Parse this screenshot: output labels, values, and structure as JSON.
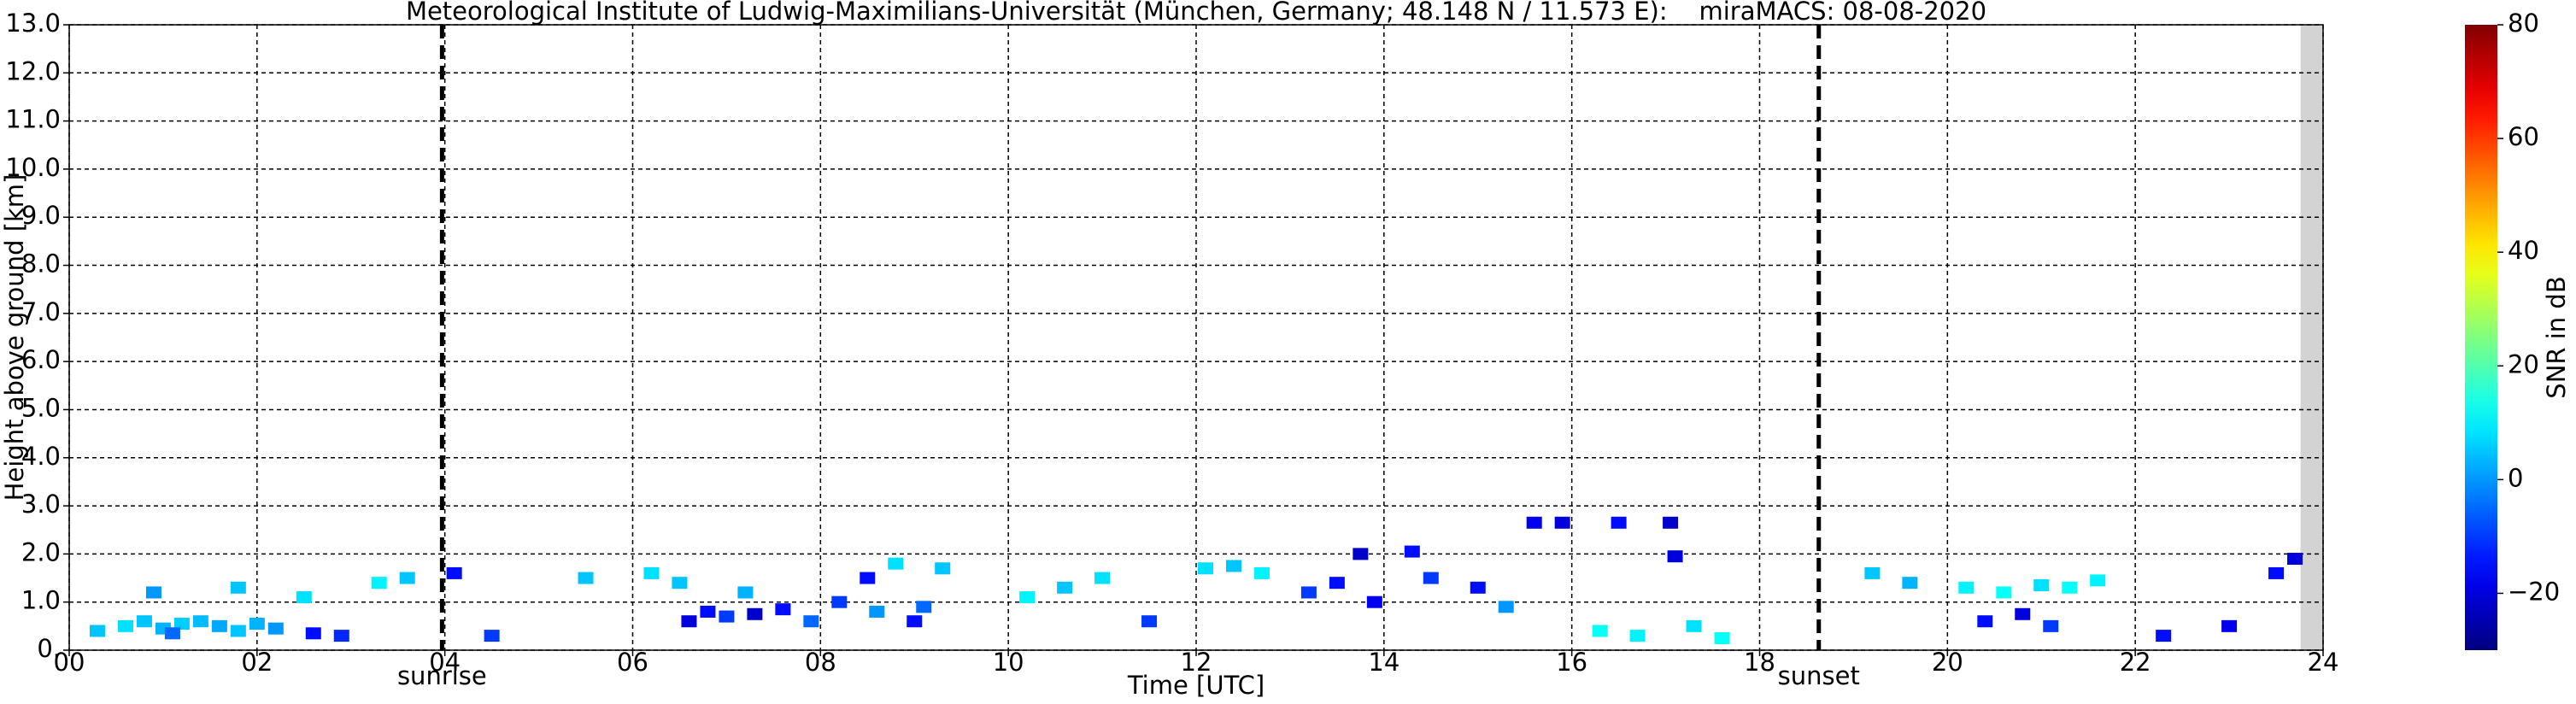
{
  "chart_data": {
    "type": "scatter",
    "title": "Meteorological Institute of Ludwig-Maximilians-Universität (München, Germany; 48.148 N / 11.573 E):    miraMACS: 08-08-2020",
    "x_label": "Time [UTC]",
    "y_label": "Height above ground [km]",
    "colorbar_label": "SNR in dB",
    "colormap": "jet",
    "grid": true,
    "xlim": [
      0,
      24
    ],
    "ylim": [
      0,
      13
    ],
    "clim": [
      -30,
      80
    ],
    "no_data_from": 23.76,
    "xticks": [
      {
        "value": 0,
        "label": "00"
      },
      {
        "value": 2,
        "label": "02"
      },
      {
        "value": 4,
        "label": "04"
      },
      {
        "value": 6,
        "label": "06"
      },
      {
        "value": 8,
        "label": "08"
      },
      {
        "value": 10,
        "label": "10"
      },
      {
        "value": 12,
        "label": "12"
      },
      {
        "value": 14,
        "label": "14"
      },
      {
        "value": 16,
        "label": "16"
      },
      {
        "value": 18,
        "label": "18"
      },
      {
        "value": 20,
        "label": "20"
      },
      {
        "value": 22,
        "label": "22"
      },
      {
        "value": 24,
        "label": "24"
      }
    ],
    "yticks": [
      {
        "value": 0,
        "label": "0."
      },
      {
        "value": 1,
        "label": "1.0"
      },
      {
        "value": 2,
        "label": "2.0"
      },
      {
        "value": 3,
        "label": "3.0"
      },
      {
        "value": 4,
        "label": "4.0"
      },
      {
        "value": 5,
        "label": "5.0"
      },
      {
        "value": 6,
        "label": "6.0"
      },
      {
        "value": 7,
        "label": "7.0"
      },
      {
        "value": 8,
        "label": "8.0"
      },
      {
        "value": 9,
        "label": "9.0"
      },
      {
        "value": 10,
        "label": "10.0"
      },
      {
        "value": 11,
        "label": "11.0"
      },
      {
        "value": 12,
        "label": "12.0"
      },
      {
        "value": 13,
        "label": "13.0"
      }
    ],
    "cticks": [
      {
        "value": -20,
        "label": "−20"
      },
      0,
      20,
      40,
      60,
      80
    ],
    "annotations": [
      {
        "x": 3.97,
        "label": "sunrise"
      },
      {
        "x": 18.63,
        "label": "sunset"
      }
    ],
    "x": [
      0.3,
      0.6,
      0.8,
      1.0,
      1.2,
      1.4,
      1.6,
      1.8,
      2.0,
      2.2,
      1.1,
      2.6,
      2.9,
      0.9,
      1.8,
      2.5,
      3.3,
      3.6,
      4.1,
      4.5,
      5.5,
      6.2,
      6.6,
      6.8,
      7.0,
      7.3,
      7.6,
      7.9,
      6.5,
      7.2,
      8.2,
      8.5,
      8.8,
      9.1,
      9.3,
      9.0,
      8.6,
      10.2,
      10.6,
      11.0,
      11.5,
      12.1,
      12.4,
      12.7,
      13.2,
      13.5,
      13.75,
      13.9,
      14.3,
      14.5,
      15.0,
      15.3,
      15.6,
      15.9,
      16.5,
      17.05,
      17.1,
      16.3,
      16.7,
      17.3,
      17.6,
      19.2,
      19.6,
      20.2,
      20.6,
      21.0,
      21.3,
      21.6,
      20.4,
      20.8,
      21.1,
      22.3,
      23.0,
      23.5,
      23.7
    ],
    "y": [
      0.4,
      0.5,
      0.6,
      0.45,
      0.55,
      0.6,
      0.5,
      0.4,
      0.55,
      0.45,
      0.35,
      0.35,
      0.3,
      1.2,
      1.3,
      1.1,
      1.4,
      1.5,
      1.6,
      0.3,
      1.5,
      1.6,
      0.6,
      0.8,
      0.7,
      0.75,
      0.85,
      0.6,
      1.4,
      1.2,
      1.0,
      1.5,
      1.8,
      0.9,
      1.7,
      0.6,
      0.8,
      1.1,
      1.3,
      1.5,
      0.6,
      1.7,
      1.75,
      1.6,
      1.2,
      1.4,
      2.0,
      1.0,
      2.05,
      1.5,
      1.3,
      0.9,
      2.65,
      2.65,
      2.65,
      2.65,
      1.95,
      0.4,
      0.3,
      0.5,
      0.25,
      1.6,
      1.4,
      1.3,
      1.2,
      1.35,
      1.3,
      1.45,
      0.6,
      0.75,
      0.5,
      0.3,
      0.5,
      1.6,
      1.9
    ],
    "snr": [
      5,
      8,
      5,
      3,
      6,
      4,
      2,
      5,
      3,
      0,
      -5,
      -15,
      -12,
      0,
      5,
      8,
      10,
      5,
      -15,
      -10,
      5,
      8,
      -20,
      -15,
      -10,
      -22,
      -15,
      -5,
      5,
      3,
      -10,
      -15,
      8,
      -5,
      5,
      -15,
      0,
      10,
      5,
      8,
      -10,
      8,
      5,
      10,
      -10,
      -15,
      -22,
      -18,
      -15,
      -10,
      -15,
      0,
      -18,
      -20,
      -15,
      -22,
      -20,
      12,
      10,
      8,
      12,
      5,
      3,
      10,
      12,
      8,
      12,
      10,
      -15,
      -20,
      -10,
      -15,
      -18,
      -15,
      -20
    ]
  }
}
